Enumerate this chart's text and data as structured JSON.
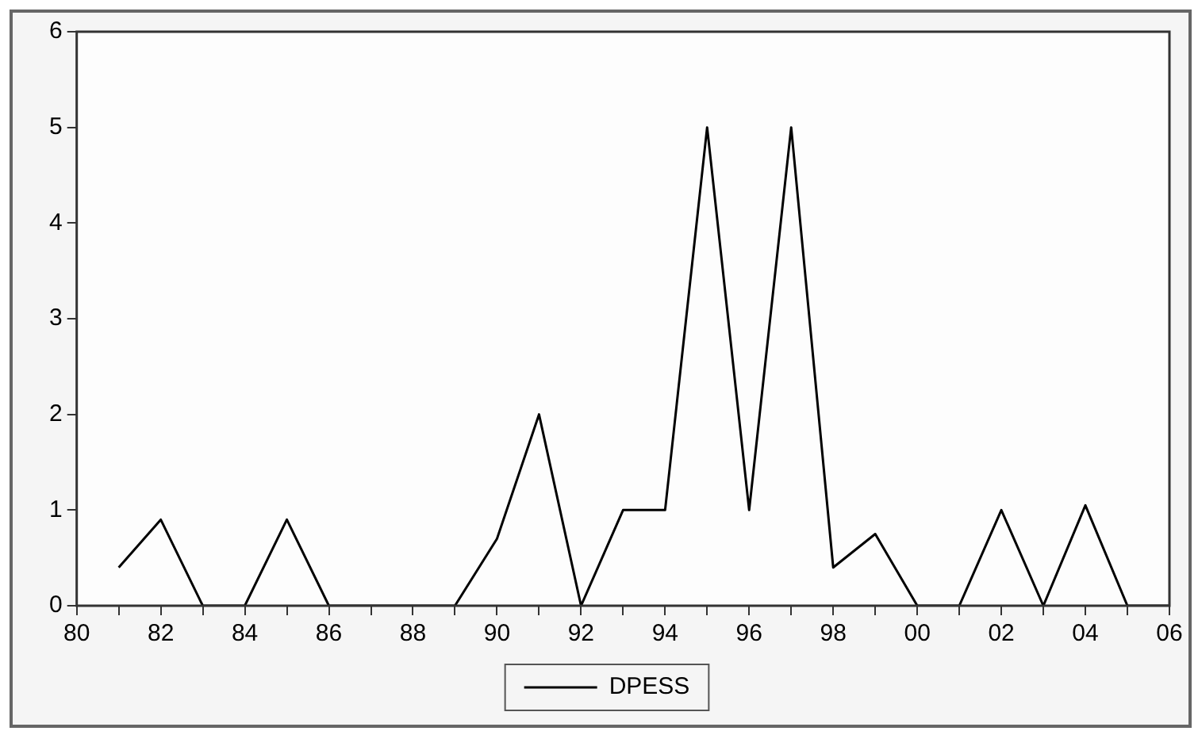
{
  "chart_data": {
    "type": "line",
    "x": [
      1981,
      1982,
      1983,
      1984,
      1985,
      1986,
      1987,
      1988,
      1989,
      1990,
      1991,
      1992,
      1993,
      1994,
      1995,
      1996,
      1997,
      1998,
      1999,
      2000,
      2001,
      2002,
      2003,
      2004,
      2005,
      2006
    ],
    "series": [
      {
        "name": "DPESS",
        "color": "#000000",
        "values": [
          0.4,
          0.9,
          0,
          0,
          0.9,
          0,
          0,
          0,
          0,
          0.7,
          2,
          0,
          1,
          1,
          5,
          1,
          5,
          0.4,
          0.75,
          0,
          0,
          1,
          0,
          1.05,
          0,
          0
        ]
      }
    ],
    "xlim": [
      1980,
      2006
    ],
    "xticks": [
      {
        "value": 1980,
        "label": "80"
      },
      {
        "value": 1981,
        "label": null
      },
      {
        "value": 1982,
        "label": "82"
      },
      {
        "value": 1983,
        "label": null
      },
      {
        "value": 1984,
        "label": "84"
      },
      {
        "value": 1985,
        "label": null
      },
      {
        "value": 1986,
        "label": "86"
      },
      {
        "value": 1987,
        "label": null
      },
      {
        "value": 1988,
        "label": "88"
      },
      {
        "value": 1989,
        "label": null
      },
      {
        "value": 1990,
        "label": "90"
      },
      {
        "value": 1991,
        "label": null
      },
      {
        "value": 1992,
        "label": "92"
      },
      {
        "value": 1993,
        "label": null
      },
      {
        "value": 1994,
        "label": "94"
      },
      {
        "value": 1995,
        "label": null
      },
      {
        "value": 1996,
        "label": "96"
      },
      {
        "value": 1997,
        "label": null
      },
      {
        "value": 1998,
        "label": "98"
      },
      {
        "value": 1999,
        "label": null
      },
      {
        "value": 2000,
        "label": "00"
      },
      {
        "value": 2001,
        "label": null
      },
      {
        "value": 2002,
        "label": "02"
      },
      {
        "value": 2003,
        "label": null
      },
      {
        "value": 2004,
        "label": "04"
      },
      {
        "value": 2005,
        "label": null
      },
      {
        "value": 2006,
        "label": "06"
      }
    ],
    "ylim": [
      0,
      6
    ],
    "yticks": [
      0,
      1,
      2,
      3,
      4,
      5,
      6
    ],
    "grid": false,
    "legend": "bottom",
    "marker": "none",
    "line_style": "solid"
  }
}
